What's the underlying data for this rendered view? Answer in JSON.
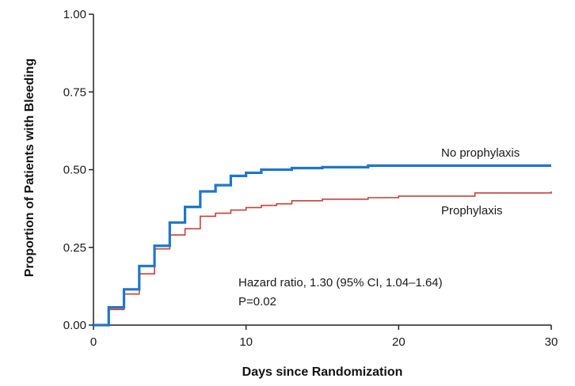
{
  "chart_data": {
    "type": "line",
    "step": true,
    "xlabel": "Days since Randomization",
    "ylabel": "Proportion of Patients with Bleeding",
    "xlim": [
      0,
      30
    ],
    "ylim": [
      0,
      1
    ],
    "x_ticks": [
      0,
      10,
      20,
      30
    ],
    "x_tick_labels": [
      "0",
      "10",
      "20",
      "30"
    ],
    "y_ticks": [
      0,
      0.25,
      0.5,
      0.75,
      1
    ],
    "y_tick_labels": [
      "0.00",
      "0.25",
      "0.50",
      "0.75",
      "1.00"
    ],
    "grid": false,
    "series": [
      {
        "name": "No prophylaxis",
        "color": "#1f77c8",
        "x": [
          0,
          1,
          2,
          3,
          4,
          5,
          6,
          7,
          8,
          9,
          10,
          11,
          12,
          13,
          15,
          18,
          30
        ],
        "y": [
          0,
          0.057,
          0.115,
          0.19,
          0.255,
          0.33,
          0.38,
          0.43,
          0.45,
          0.48,
          0.49,
          0.5,
          0.5,
          0.505,
          0.508,
          0.513,
          0.513
        ]
      },
      {
        "name": "Prophylaxis",
        "color": "#c8403a",
        "x": [
          0,
          1,
          2,
          3,
          4,
          5,
          6,
          7,
          8,
          9,
          10,
          11,
          12,
          13,
          15,
          18,
          20,
          25,
          30
        ],
        "y": [
          0,
          0.05,
          0.1,
          0.165,
          0.245,
          0.29,
          0.31,
          0.35,
          0.36,
          0.37,
          0.378,
          0.385,
          0.39,
          0.4,
          0.405,
          0.41,
          0.415,
          0.425,
          0.43
        ]
      }
    ],
    "annotations": [
      "Hazard ratio, 1.30 (95% CI, 1.04–1.64)",
      "P=0.02"
    ]
  }
}
